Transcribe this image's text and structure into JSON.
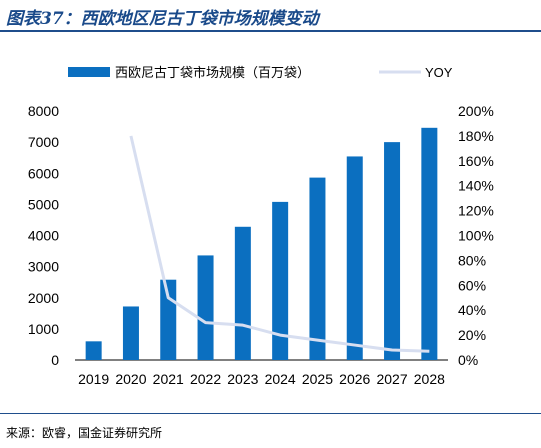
{
  "header": {
    "title": "图表37：西欧地区尼古丁袋市场规模变动"
  },
  "footer": {
    "source": "来源：欧睿，国金证券研究所"
  },
  "colors": {
    "bar": "#0b6fc0",
    "line": "#d7def0",
    "rule": "#1f4e8c"
  },
  "chart_data": {
    "type": "bar",
    "categories": [
      "2019",
      "2020",
      "2021",
      "2022",
      "2023",
      "2024",
      "2025",
      "2026",
      "2027",
      "2028"
    ],
    "series": [
      {
        "name": "西欧尼古丁袋市场规模（百万袋）",
        "type": "bar",
        "axis": "left",
        "values": [
          600,
          1720,
          2580,
          3360,
          4280,
          5080,
          5860,
          6540,
          7000,
          7460
        ]
      },
      {
        "name": "YOY",
        "type": "line",
        "axis": "right",
        "values": [
          null,
          1.8,
          0.5,
          0.3,
          0.28,
          0.2,
          0.16,
          0.12,
          0.08,
          0.07
        ]
      }
    ],
    "y_left": {
      "min": 0,
      "max": 8000,
      "ticks": [
        "0",
        "1000",
        "2000",
        "3000",
        "4000",
        "5000",
        "6000",
        "7000",
        "8000"
      ]
    },
    "y_right": {
      "min": 0,
      "max": 2,
      "ticks": [
        "0%",
        "20%",
        "40%",
        "60%",
        "80%",
        "100%",
        "120%",
        "140%",
        "160%",
        "180%",
        "200%"
      ]
    },
    "legend": {
      "position": "top"
    },
    "grid": false
  }
}
